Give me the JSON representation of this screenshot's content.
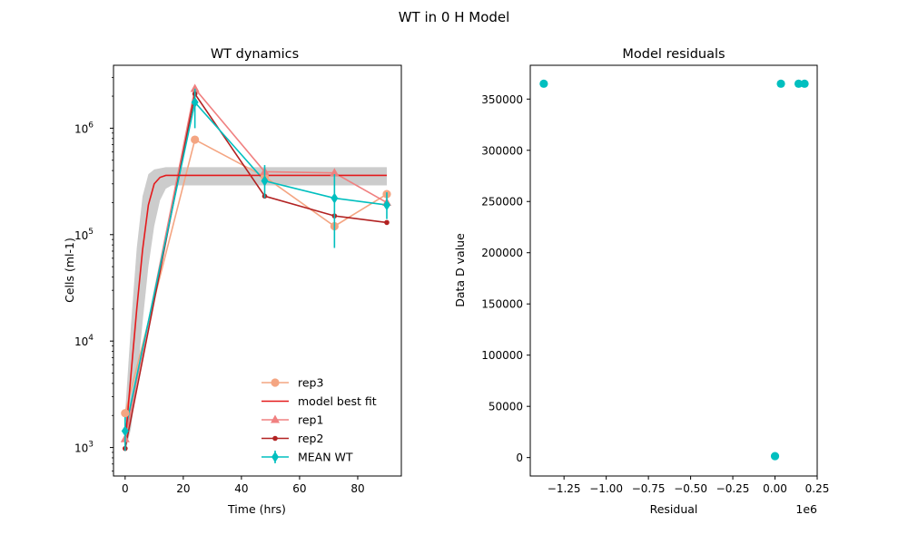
{
  "figure": {
    "suptitle": "WT in 0 H Model"
  },
  "chart_data": [
    {
      "type": "line",
      "title": "WT dynamics",
      "xlabel": "Time (hrs)",
      "ylabel": "Cells (ml-1)",
      "xlim": [
        -4,
        95
      ],
      "ylim": [
        540,
        3900000
      ],
      "yscale": "log",
      "xticks": [
        0,
        20,
        40,
        60,
        80
      ],
      "xtick_labels": [
        "0",
        "20",
        "40",
        "60",
        "80"
      ],
      "yticks": [
        1000,
        10000,
        100000,
        1000000
      ],
      "ytick_labels": [
        {
          "base": "10",
          "exp": "3"
        },
        {
          "base": "10",
          "exp": "4"
        },
        {
          "base": "10",
          "exp": "5"
        },
        {
          "base": "10",
          "exp": "6"
        }
      ],
      "grid": false,
      "legend": {
        "position": "lower right",
        "entries": [
          "rep3",
          " model best fit",
          "rep1",
          "rep2",
          "MEAN WT"
        ]
      },
      "series": [
        {
          "name": "rep3",
          "color": "#f4a582",
          "marker": "circle",
          "x": [
            0,
            24,
            48,
            72,
            90
          ],
          "y": [
            2100,
            780000,
            350000,
            120000,
            240000
          ]
        },
        {
          "name": "rep1",
          "color": "#f08080",
          "marker": "triangle",
          "x": [
            0,
            24,
            48,
            72,
            90
          ],
          "y": [
            1200,
            2350000,
            390000,
            380000,
            200000
          ]
        },
        {
          "name": "rep2",
          "color": "#b22222",
          "marker": "dot",
          "x": [
            0,
            24,
            48,
            72,
            90
          ],
          "y": [
            980,
            2100000,
            230000,
            150000,
            130000
          ]
        },
        {
          "name": "MEAN WT",
          "color": "#00bfbf",
          "marker": "diamond",
          "x": [
            0,
            24,
            48,
            72,
            90
          ],
          "y": [
            1430,
            1750000,
            320000,
            220000,
            190000
          ],
          "err_low": [
            500,
            750000,
            100000,
            145000,
            50000
          ],
          "err_high": [
            500,
            600000,
            130000,
            150000,
            60000
          ]
        },
        {
          "name": " model best fit",
          "color": "#e41a1c",
          "marker": "none",
          "x": [
            0,
            2,
            4,
            6,
            8,
            10,
            12,
            14,
            90
          ],
          "y": [
            1100,
            4800,
            20000,
            72000,
            190000,
            300000,
            345000,
            360000,
            360000
          ]
        }
      ],
      "confidence_band": {
        "color": "#cccccc",
        "x": [
          0,
          2,
          4,
          6,
          8,
          10,
          12,
          14,
          16,
          90
        ],
        "upper": [
          2100,
          14000,
          75000,
          230000,
          370000,
          410000,
          420000,
          430000,
          430000,
          430000
        ],
        "lower": [
          900,
          1500,
          4000,
          15000,
          50000,
          120000,
          210000,
          270000,
          290000,
          290000
        ]
      }
    },
    {
      "type": "scatter",
      "title": "Model residuals",
      "xlabel": "Residual",
      "ylabel": "Data D value",
      "offset_label": "1e6",
      "xlim": [
        -1.45,
        0.25
      ],
      "ylim": [
        -18000,
        383000
      ],
      "xticks": [
        -1.25,
        -1.0,
        -0.75,
        -0.5,
        -0.25,
        0.0,
        0.25
      ],
      "xtick_labels": [
        "−1.25",
        "−1.00",
        "−0.75",
        "−0.50",
        "−0.25",
        "0.00",
        "0.25"
      ],
      "yticks": [
        0,
        50000,
        100000,
        150000,
        200000,
        250000,
        300000,
        350000
      ],
      "ytick_labels": [
        "0",
        "50000",
        "100000",
        "150000",
        "200000",
        "250000",
        "300000",
        "350000"
      ],
      "grid": false,
      "color": "#00bfbf",
      "points": [
        {
          "x": -1.37,
          "y": 365000
        },
        {
          "x": 0.035,
          "y": 365000
        },
        {
          "x": 0.14,
          "y": 365000
        },
        {
          "x": 0.175,
          "y": 365000
        },
        {
          "x": 0.0,
          "y": 1400
        }
      ]
    }
  ]
}
